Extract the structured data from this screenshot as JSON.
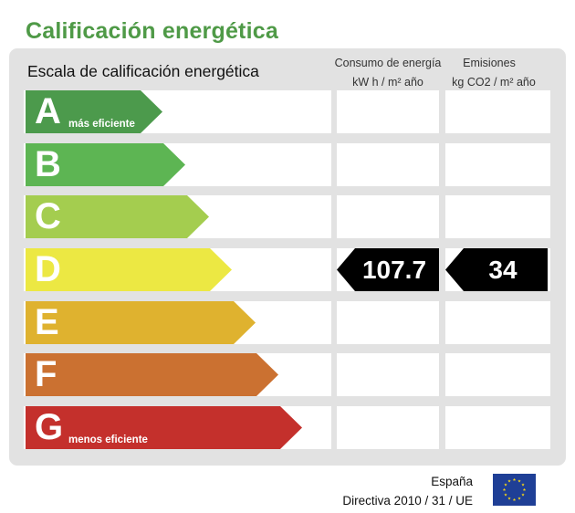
{
  "title": "Calificación energética",
  "scale_heading": "Escala de calificación energética",
  "columns": {
    "consumption_line1": "Consumo de energía",
    "consumption_line2": "kW h / m² año",
    "emissions_line1": "Emisiones",
    "emissions_line2": "kg CO2 / m² año"
  },
  "ratings": [
    {
      "letter": "A",
      "sublabel": "más eficiente",
      "color": "#4c9a4c"
    },
    {
      "letter": "B",
      "sublabel": "",
      "color": "#5db553"
    },
    {
      "letter": "C",
      "sublabel": "",
      "color": "#a4cd4f"
    },
    {
      "letter": "D",
      "sublabel": "",
      "color": "#ece843"
    },
    {
      "letter": "E",
      "sublabel": "",
      "color": "#dfb22f"
    },
    {
      "letter": "F",
      "sublabel": "",
      "color": "#cb7131"
    },
    {
      "letter": "G",
      "sublabel": "menos eficiente",
      "color": "#c4302c"
    }
  ],
  "selected_rating": "D",
  "consumption_value": "107.7",
  "emissions_value": "34",
  "footer": {
    "country": "España",
    "directive": "Directiva 2010 / 31 / UE"
  },
  "eu_flag_icon": "eu-flag-icon"
}
